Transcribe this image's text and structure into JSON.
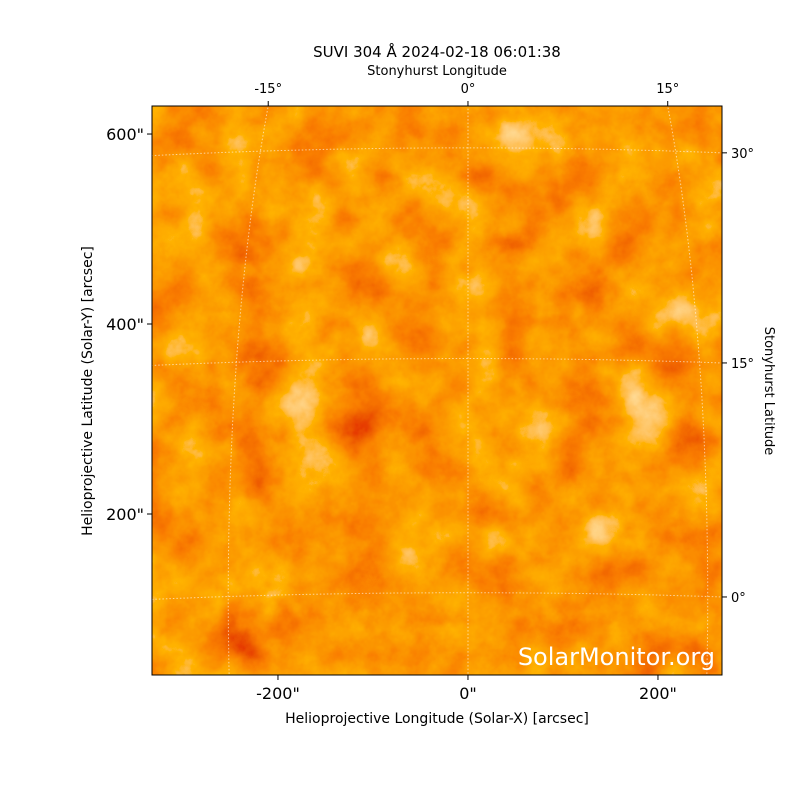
{
  "chart_data": {
    "type": "image",
    "title": "SUVI 304 Å 2024-02-18 06:01:38",
    "xlabel": "Helioprojective Longitude (Solar-X) [arcsec]",
    "ylabel": "Helioprojective Latitude (Solar-Y) [arcsec]",
    "top_label": "Stonyhurst Longitude",
    "right_label": "Stonyhurst Latitude",
    "xlim": [
      -332.6,
      267.4
    ],
    "ylim": [
      30.5,
      629.5
    ],
    "xticks": [
      {
        "value": -200,
        "label": "-200\""
      },
      {
        "value": 0,
        "label": "0\""
      },
      {
        "value": 200,
        "label": "200\""
      }
    ],
    "yticks": [
      {
        "value": 200,
        "label": "200\""
      },
      {
        "value": 400,
        "label": "400\""
      },
      {
        "value": 600,
        "label": "600\""
      }
    ],
    "lon_ticks": [
      {
        "value": -15,
        "label": "-15°"
      },
      {
        "value": 0,
        "label": "0°"
      },
      {
        "value": 15,
        "label": "15°"
      }
    ],
    "lat_ticks": [
      {
        "value": 0,
        "label": "0°"
      },
      {
        "value": 15,
        "label": "15°"
      },
      {
        "value": 30,
        "label": "30°"
      }
    ],
    "watermark": "SolarMonitor.org"
  }
}
